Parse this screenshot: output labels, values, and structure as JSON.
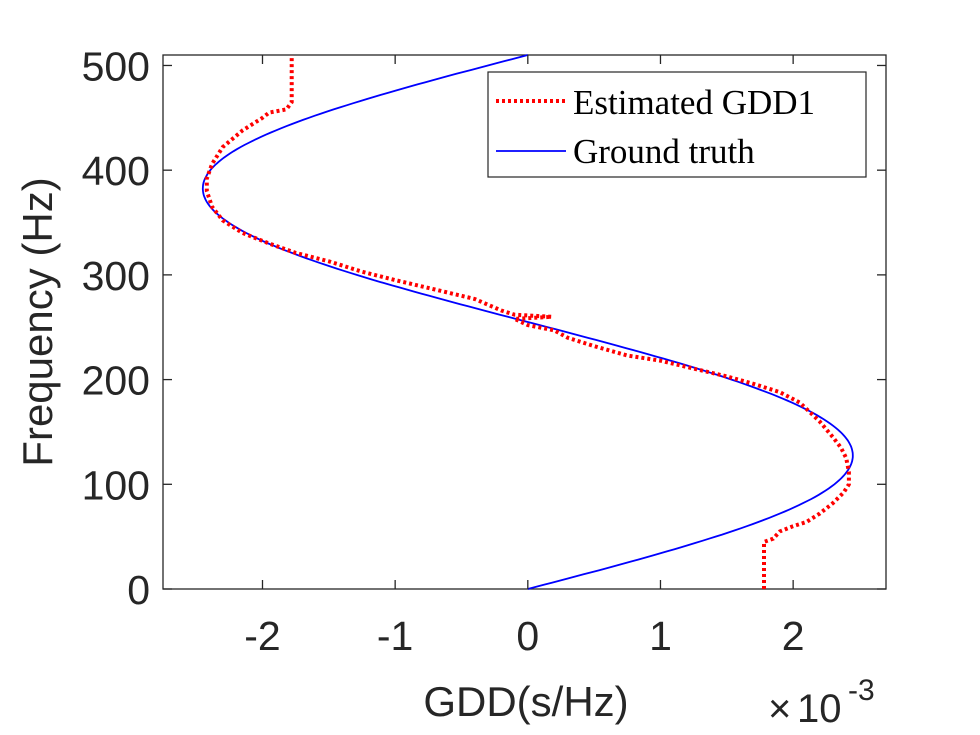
{
  "chart_data": {
    "type": "line",
    "xlabel": "GDD(s/Hz)",
    "ylabel": "Frequency (Hz)",
    "x_exponent": {
      "base": "10",
      "power": "-3",
      "times": "×"
    },
    "xlim": [
      -2.75,
      2.7
    ],
    "ylim": [
      0,
      510
    ],
    "xticks": [
      -2,
      -1,
      0,
      1,
      2
    ],
    "xtick_labels": [
      "-2",
      "-1",
      "0",
      "1",
      "2"
    ],
    "yticks": [
      0,
      100,
      200,
      300,
      400,
      500
    ],
    "ytick_labels": [
      "0",
      "100",
      "200",
      "300",
      "400",
      "500"
    ],
    "grid": false,
    "legend_position": "top-right",
    "series": [
      {
        "name": "Estimated GDD1",
        "style": "dotted",
        "color": "#ff0000",
        "points": [
          [
            1.78,
            0
          ],
          [
            1.78,
            45
          ],
          [
            1.85,
            48
          ],
          [
            1.9,
            55
          ],
          [
            2.0,
            60
          ],
          [
            2.1,
            64
          ],
          [
            2.2,
            72
          ],
          [
            2.3,
            82
          ],
          [
            2.38,
            92
          ],
          [
            2.42,
            100
          ],
          [
            2.42,
            112
          ],
          [
            2.4,
            125
          ],
          [
            2.36,
            135
          ],
          [
            2.3,
            145
          ],
          [
            2.2,
            160
          ],
          [
            2.05,
            178
          ],
          [
            1.9,
            188
          ],
          [
            1.7,
            196
          ],
          [
            1.5,
            203
          ],
          [
            1.2,
            212
          ],
          [
            1.0,
            218
          ],
          [
            0.75,
            223
          ],
          [
            0.5,
            232
          ],
          [
            0.3,
            240
          ],
          [
            0.2,
            247
          ],
          [
            0.0,
            252
          ],
          [
            -0.1,
            258
          ],
          [
            0.18,
            260
          ],
          [
            -0.1,
            262
          ],
          [
            -0.2,
            266
          ],
          [
            -0.4,
            277
          ],
          [
            -0.7,
            286
          ],
          [
            -1.0,
            295
          ],
          [
            -1.25,
            303
          ],
          [
            -1.5,
            313
          ],
          [
            -1.75,
            321
          ],
          [
            -1.95,
            330
          ],
          [
            -2.15,
            340
          ],
          [
            -2.3,
            352
          ],
          [
            -2.38,
            365
          ],
          [
            -2.42,
            380
          ],
          [
            -2.42,
            392
          ],
          [
            -2.38,
            406
          ],
          [
            -2.3,
            422
          ],
          [
            -2.15,
            438
          ],
          [
            -2.0,
            450
          ],
          [
            -1.95,
            455
          ],
          [
            -1.82,
            458
          ],
          [
            -1.78,
            465
          ],
          [
            -1.78,
            510
          ]
        ]
      },
      {
        "name": "Ground truth",
        "style": "solid",
        "color": "#0000ff",
        "function": "x = 0.00245 * sin(2*pi*f/510) (x in units of 1e-3 s/Hz)",
        "amplitude": 2.45,
        "period_hz": 510,
        "f_range": [
          0,
          510
        ]
      }
    ]
  }
}
